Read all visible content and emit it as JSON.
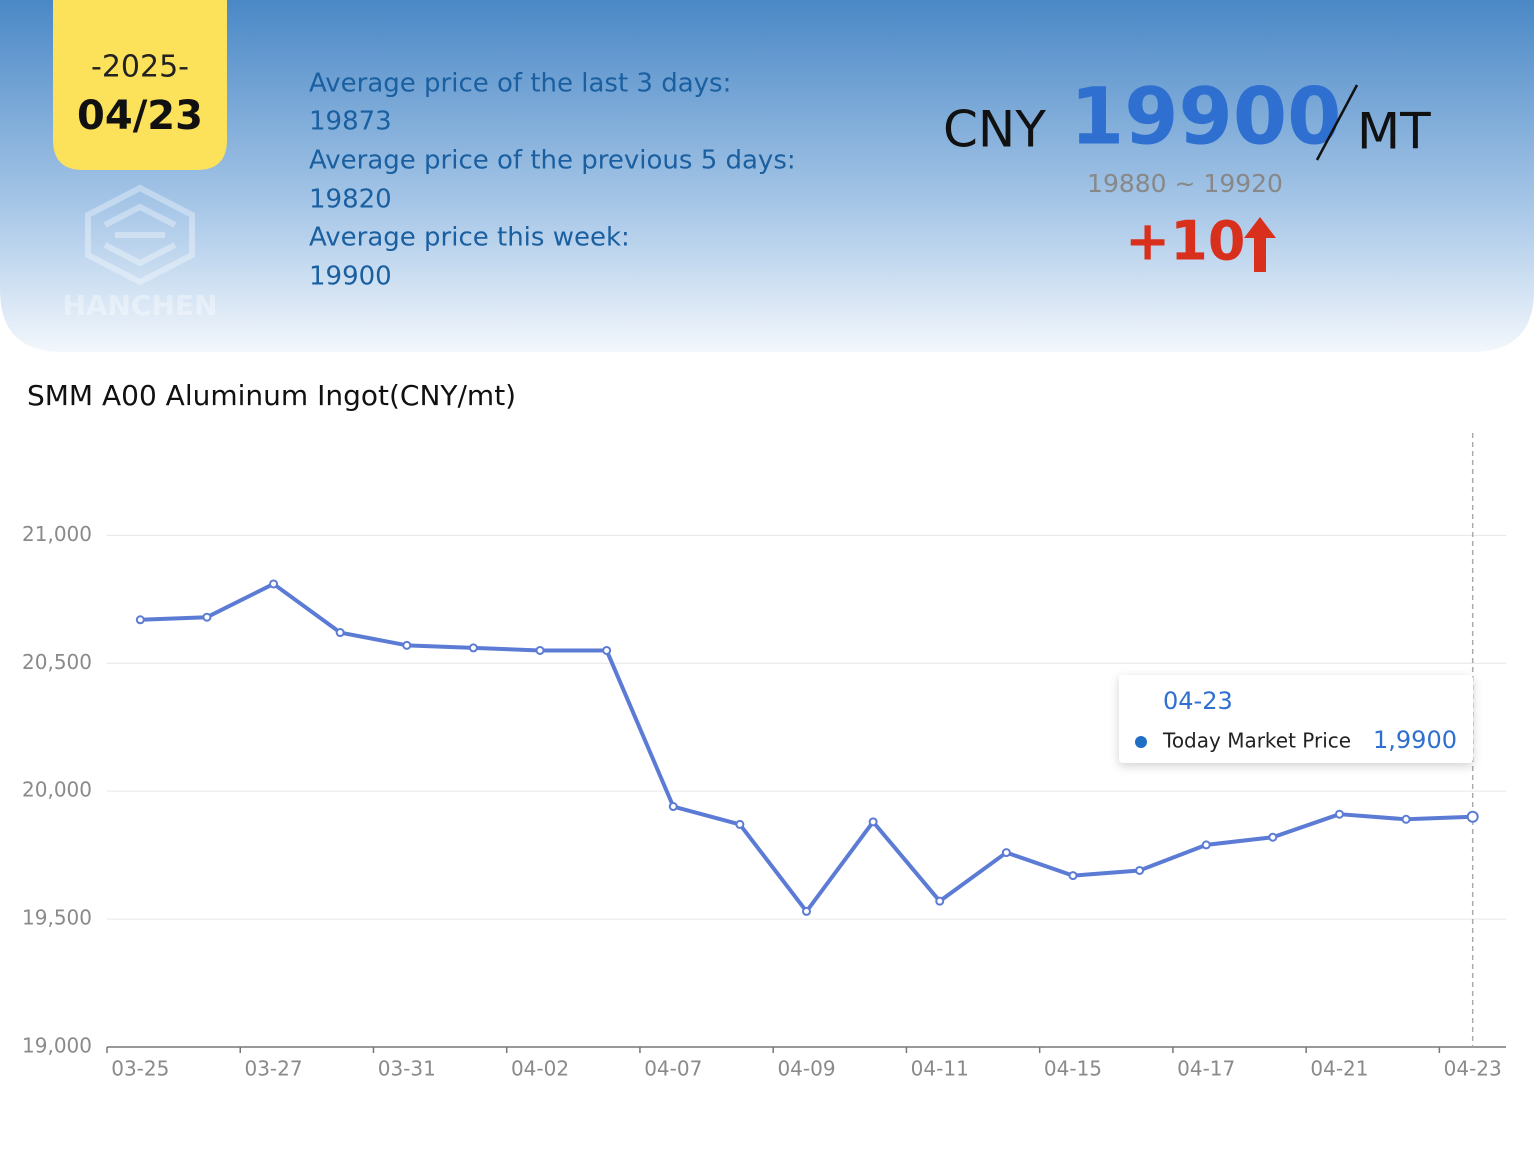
{
  "header": {
    "year": "-2025-",
    "date": "04/23",
    "stats": [
      "Average price of the last 3 days:",
      "19873",
      "Average price of the previous 5 days:",
      "19820",
      "Average price this week:",
      "19900"
    ],
    "currency": "CNY",
    "price": "19900",
    "unit": "MT",
    "range": "19880 ~ 19920",
    "change": "+10",
    "logo_text": "HANCHEN"
  },
  "chart_data": {
    "type": "line",
    "title": "SMM A00 Aluminum Ingot(CNY/mt)",
    "categories": [
      "03-25",
      null,
      "03-27",
      null,
      "03-31",
      null,
      "04-02",
      null,
      "04-07",
      null,
      "04-09",
      null,
      "04-11",
      null,
      "04-15",
      null,
      "04-17",
      null,
      "04-21",
      null,
      "04-23"
    ],
    "series": [
      {
        "name": "Today Market Price",
        "color": "#5b7bd5",
        "values": [
          20670,
          20680,
          20810,
          20620,
          20570,
          20560,
          20550,
          20550,
          19940,
          19870,
          19530,
          19880,
          19570,
          19760,
          19670,
          19690,
          19790,
          19820,
          19910,
          19890,
          19900
        ]
      }
    ],
    "ylim": [
      19000,
      21400
    ],
    "yticks": [
      {
        "value": 19000,
        "label": "19,000"
      },
      {
        "value": 19500,
        "label": "19,500"
      },
      {
        "value": 20000,
        "label": "20,000"
      },
      {
        "value": 20500,
        "label": "20,500"
      },
      {
        "value": 21000,
        "label": "21,000"
      }
    ],
    "grid": true,
    "tooltip": {
      "value_label": "1,9900"
    }
  }
}
